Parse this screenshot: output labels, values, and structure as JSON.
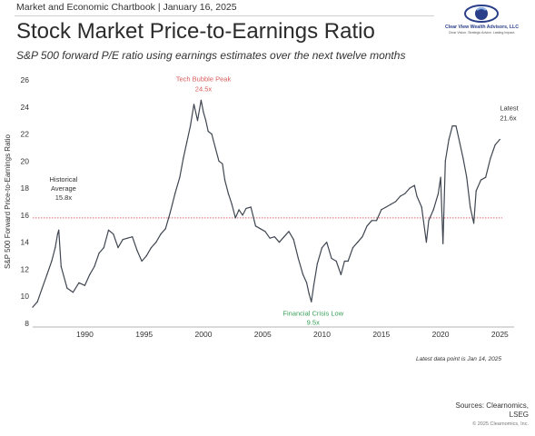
{
  "header": {
    "label": "Market and Economic Chartbook | January 16, 2025",
    "title": "Stock Market Price-to-Earnings Ratio",
    "subtitle": "S&P 500 forward P/E ratio using earnings estimates over the next twelve months"
  },
  "logo": {
    "name": "Clear View Wealth Advisors, LLC",
    "tagline": "Clear Vision. Strategic Advice. Lasting Impact."
  },
  "colors": {
    "line": "#3f4650",
    "average_line": "#e0636b",
    "peak_label": "#d85b5b",
    "low_label": "#3aa15a",
    "logo_blue": "#2a3f8a"
  },
  "chart_data": {
    "type": "line",
    "title": "",
    "xlabel": "",
    "ylabel": "S&P 500 Forward Price-to-Earnings Ratio",
    "xlim": [
      1985.6,
      2026.2
    ],
    "ylim": [
      8,
      26
    ],
    "x_ticks": [
      1990,
      1995,
      2000,
      2005,
      2010,
      2015,
      2020,
      2025
    ],
    "y_ticks": [
      8,
      10,
      12,
      14,
      16,
      18,
      20,
      22,
      24,
      26
    ],
    "grid": false,
    "legend": "none",
    "reference_line": {
      "value": 15.8,
      "style": "dotted"
    },
    "series": [
      {
        "x": [
          1985.6,
          1986.0,
          1986.4,
          1986.8,
          1987.2,
          1987.5,
          1987.7,
          1987.8,
          1988.0,
          1988.5,
          1989.0,
          1989.5,
          1990.0,
          1990.4,
          1990.8,
          1991.2,
          1991.6,
          1992.0,
          1992.4,
          1992.8,
          1993.2,
          1993.6,
          1994.0,
          1994.4,
          1994.8,
          1995.2,
          1995.6,
          1996.0,
          1996.4,
          1996.8,
          1997.2,
          1997.6,
          1998.0,
          1998.3,
          1998.6,
          1998.9,
          1999.2,
          1999.5,
          1999.8,
          2000.0,
          2000.2,
          2000.4,
          2000.7,
          2001.0,
          2001.3,
          2001.6,
          2001.8,
          2002.1,
          2002.4,
          2002.7,
          2003.0,
          2003.3,
          2003.6,
          2004.0,
          2004.4,
          2004.8,
          2005.2,
          2005.6,
          2006.0,
          2006.4,
          2006.8,
          2007.2,
          2007.6,
          2008.0,
          2008.4,
          2008.7,
          2008.9,
          2009.1,
          2009.3,
          2009.6,
          2010.0,
          2010.4,
          2010.8,
          2011.2,
          2011.6,
          2011.9,
          2012.2,
          2012.6,
          2013.0,
          2013.4,
          2013.8,
          2014.2,
          2014.6,
          2015.0,
          2015.4,
          2015.8,
          2016.2,
          2016.6,
          2017.0,
          2017.4,
          2017.8,
          2018.0,
          2018.4,
          2018.8,
          2019.0,
          2019.4,
          2019.8,
          2020.0,
          2020.2,
          2020.4,
          2020.7,
          2021.0,
          2021.3,
          2021.6,
          2021.9,
          2022.2,
          2022.5,
          2022.8,
          2023.0,
          2023.4,
          2023.8,
          2024.2,
          2024.6,
          2025.0
        ],
        "y": [
          9.2,
          9.6,
          10.6,
          11.6,
          12.6,
          13.6,
          14.6,
          14.9,
          12.2,
          10.6,
          10.3,
          11.0,
          10.8,
          11.6,
          12.2,
          13.2,
          13.6,
          14.9,
          14.6,
          13.6,
          14.2,
          14.3,
          14.4,
          13.4,
          12.6,
          13.0,
          13.6,
          14.0,
          14.6,
          15.0,
          16.2,
          17.6,
          18.8,
          20.2,
          21.4,
          22.6,
          24.2,
          23.0,
          24.5,
          23.6,
          23.0,
          22.2,
          22.0,
          21.0,
          20.0,
          19.8,
          18.6,
          17.6,
          16.8,
          15.8,
          16.4,
          16.0,
          16.5,
          16.6,
          15.2,
          15.0,
          14.8,
          14.3,
          14.4,
          14.0,
          14.4,
          14.8,
          14.2,
          12.8,
          11.6,
          11.0,
          10.2,
          9.6,
          10.8,
          12.4,
          13.6,
          14.0,
          12.8,
          12.6,
          11.6,
          12.6,
          12.6,
          13.6,
          14.0,
          14.4,
          15.2,
          15.6,
          15.6,
          16.4,
          16.6,
          16.8,
          17.0,
          17.4,
          17.6,
          18.0,
          18.2,
          17.4,
          16.6,
          14.0,
          15.6,
          16.4,
          17.6,
          18.8,
          13.9,
          20.0,
          21.6,
          22.6,
          22.6,
          21.4,
          20.2,
          18.8,
          16.6,
          15.4,
          17.8,
          18.6,
          18.8,
          20.2,
          21.2,
          21.6
        ]
      }
    ],
    "annotations": [
      {
        "text": "Tech Bubble Peak",
        "x": 2000.0,
        "y": 24.5
      },
      {
        "text": "24.5x",
        "x": 2000.0,
        "y": 24.5
      },
      {
        "text": "Historical",
        "x": 1988.2,
        "y": 15.8
      },
      {
        "text": "Average",
        "x": 1988.2,
        "y": 15.8
      },
      {
        "text": "15.8x",
        "x": 1988.2,
        "y": 15.8
      },
      {
        "text": "Financial Crisis Low",
        "x": 2009.1,
        "y": 9.5
      },
      {
        "text": "9.5x",
        "x": 2009.1,
        "y": 9.5
      },
      {
        "text": "Latest",
        "x": 2025.0,
        "y": 21.6
      },
      {
        "text": "21.6x",
        "x": 2025.0,
        "y": 21.6
      }
    ]
  },
  "footer": {
    "note": "Latest data point is Jan 14, 2025",
    "sources_line1": "Sources: Clearnomics,",
    "sources_line2": "LSEG",
    "copyright": "© 2025 Clearnomics, Inc."
  }
}
